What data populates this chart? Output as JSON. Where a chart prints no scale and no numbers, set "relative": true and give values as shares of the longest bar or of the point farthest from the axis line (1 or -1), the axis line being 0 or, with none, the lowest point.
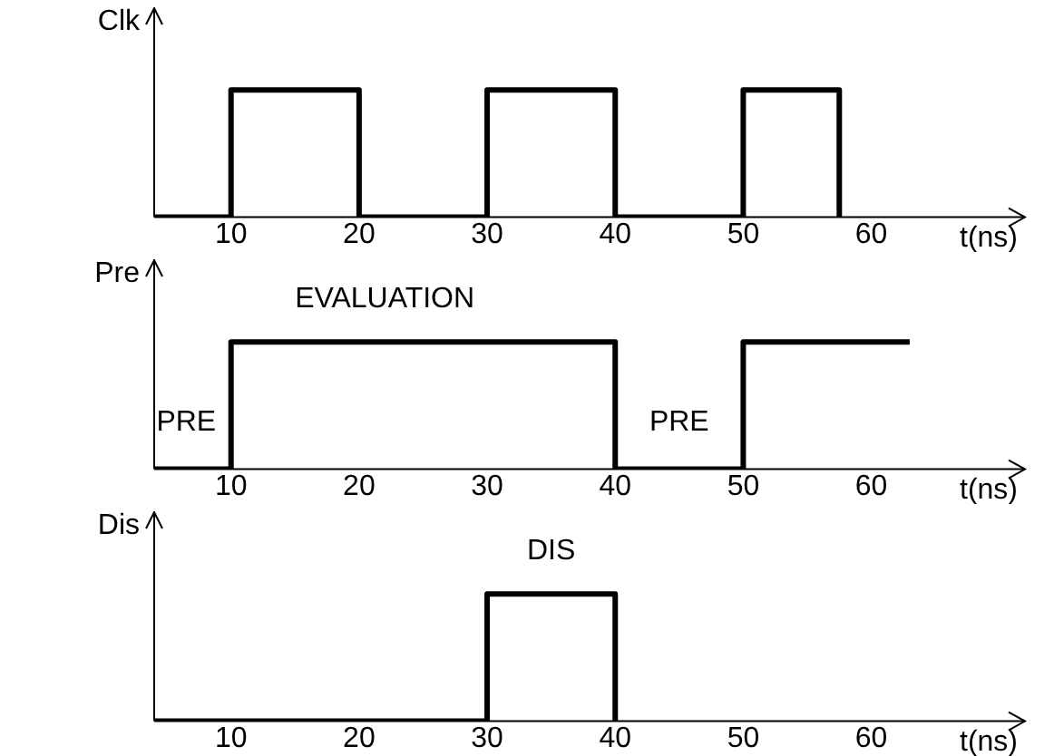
{
  "chart_data": [
    {
      "type": "step",
      "ylabel": "Clk",
      "xlabel": "t(ns)",
      "relative": true,
      "color": "#000000",
      "x": [
        4,
        10,
        20,
        30,
        40,
        50,
        57.5
      ],
      "values": [
        0,
        1,
        0,
        1,
        0,
        1,
        0
      ],
      "xlim": [
        4,
        72
      ],
      "xticks": [
        10,
        20,
        30,
        40,
        50,
        60
      ]
    },
    {
      "type": "step",
      "ylabel": "Pre",
      "xlabel": "t(ns)",
      "relative": true,
      "color": "#000000",
      "x": [
        4,
        10,
        40,
        50,
        63
      ],
      "values": [
        0,
        1,
        0,
        1,
        1
      ],
      "xlim": [
        4,
        72
      ],
      "xticks": [
        10,
        20,
        30,
        40,
        50,
        60
      ],
      "annotations": [
        "PRE",
        "EVALUATION",
        "PRE"
      ]
    },
    {
      "type": "step",
      "ylabel": "Dis",
      "xlabel": "t(ns)",
      "relative": true,
      "color": "#000000",
      "x": [
        4,
        30,
        40
      ],
      "values": [
        0,
        1,
        0
      ],
      "xlim": [
        4,
        72
      ],
      "xticks": [
        10,
        20,
        30,
        40,
        50,
        60
      ],
      "annotations": [
        "DIS"
      ]
    }
  ]
}
